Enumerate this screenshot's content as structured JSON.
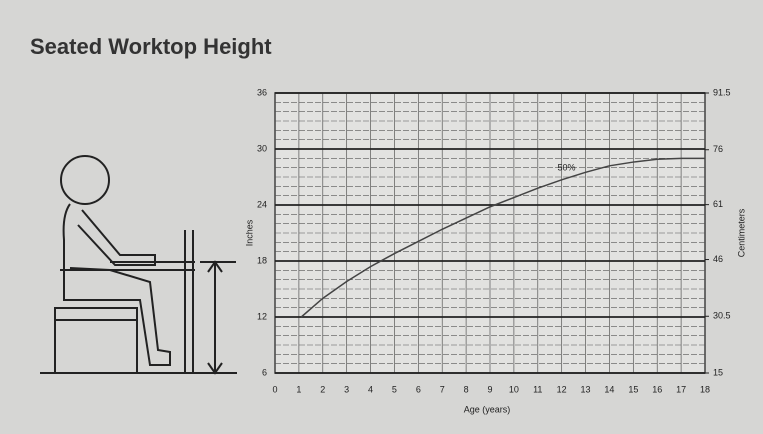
{
  "chart_data": {
    "type": "line",
    "title": "Seated Worktop Height",
    "x_label": "Age (years)",
    "y_label": "Inches",
    "y2_label": "Centimeters",
    "x": [
      1.1,
      2,
      3,
      4,
      5,
      6,
      7,
      8,
      9,
      10,
      11,
      12,
      13,
      14,
      15,
      16,
      17,
      18
    ],
    "series": [
      {
        "name": "50%",
        "color": "#444444",
        "values": [
          12,
          14,
          15.8,
          17.4,
          18.8,
          20.1,
          21.4,
          22.6,
          23.8,
          24.8,
          25.8,
          26.7,
          27.5,
          28.2,
          28.6,
          28.9,
          29,
          29
        ]
      }
    ],
    "xlim": [
      0,
      18
    ],
    "xticks": [
      0,
      1,
      2,
      3,
      4,
      5,
      6,
      7,
      8,
      9,
      10,
      11,
      12,
      13,
      14,
      15,
      16,
      17,
      18
    ],
    "ylim": [
      6,
      36
    ],
    "yticks": [
      6,
      12,
      18,
      24,
      30,
      36
    ],
    "y2lim": [
      15,
      91.5
    ],
    "y2ticks": [
      15,
      30.5,
      46,
      61,
      76,
      91.5
    ],
    "grid": true
  }
}
